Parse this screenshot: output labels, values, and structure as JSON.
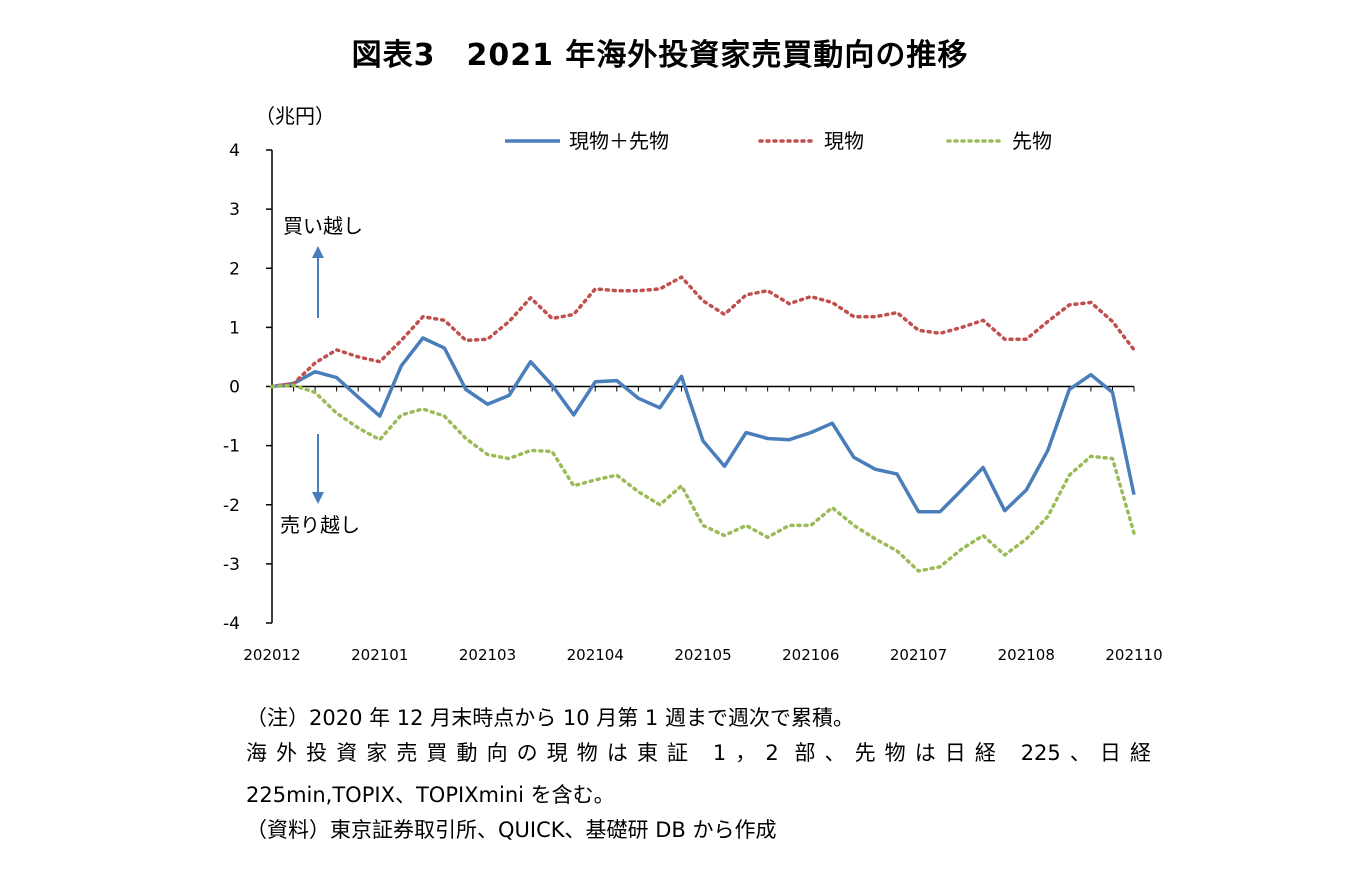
{
  "title": "図表3　2021 年海外投資家売買動向の推移",
  "chart_data": {
    "type": "line",
    "unit_label": "（兆円）",
    "ylim": [
      -4,
      4
    ],
    "y_ticks": [
      "4",
      "3",
      "2",
      "1",
      "0",
      "-1",
      "-2",
      "-3",
      "-4"
    ],
    "x_tick_labels": [
      "202012",
      "202101",
      "202103",
      "202104",
      "202105",
      "202106",
      "202107",
      "202108",
      "202110"
    ],
    "annotations": {
      "buy": "買い越し",
      "sell": "売り越し"
    },
    "grid": false,
    "legend_position": "top",
    "series": [
      {
        "name": "現物＋先物",
        "color": "#4a7ebb",
        "style": "solid",
        "values": [
          0,
          0.05,
          0.25,
          0.15,
          -0.18,
          -0.5,
          0.35,
          0.82,
          0.65,
          -0.05,
          -0.3,
          -0.15,
          0.42,
          0.02,
          -0.48,
          0.08,
          0.1,
          -0.2,
          -0.36,
          0.17,
          -0.92,
          -1.35,
          -0.78,
          -0.88,
          -0.9,
          -0.78,
          -0.62,
          -1.2,
          -1.4,
          -1.48,
          -2.12,
          -2.12,
          -1.75,
          -1.37,
          -2.1,
          -1.75,
          -1.08,
          -0.05,
          0.2,
          -0.1,
          -1.83
        ]
      },
      {
        "name": "現物",
        "color": "#c0504d",
        "style": "dotted",
        "values": [
          0,
          0.05,
          0.4,
          0.62,
          0.5,
          0.42,
          0.78,
          1.18,
          1.12,
          0.78,
          0.8,
          1.1,
          1.5,
          1.15,
          1.22,
          1.65,
          1.62,
          1.62,
          1.65,
          1.85,
          1.45,
          1.22,
          1.55,
          1.62,
          1.4,
          1.52,
          1.42,
          1.18,
          1.18,
          1.25,
          0.95,
          0.9,
          1.0,
          1.12,
          0.8,
          0.8,
          1.1,
          1.38,
          1.42,
          1.1,
          0.62
        ]
      },
      {
        "name": "先物",
        "color": "#9bbb59",
        "style": "dotted",
        "values": [
          0,
          0.02,
          -0.1,
          -0.45,
          -0.7,
          -0.9,
          -0.48,
          -0.38,
          -0.5,
          -0.88,
          -1.15,
          -1.22,
          -1.08,
          -1.1,
          -1.68,
          -1.58,
          -1.5,
          -1.78,
          -2.0,
          -1.68,
          -2.35,
          -2.52,
          -2.35,
          -2.55,
          -2.35,
          -2.35,
          -2.05,
          -2.35,
          -2.58,
          -2.78,
          -3.12,
          -3.05,
          -2.75,
          -2.52,
          -2.85,
          -2.58,
          -2.2,
          -1.5,
          -1.18,
          -1.22,
          -2.48
        ]
      }
    ]
  },
  "notes": {
    "n1": "（注）2020 年 12 月末時点から 10 月第 1 週まで週次で累積。",
    "n2": "海外投資家売買動向の現物は東証 1，2 部、先物は日経 225、日経",
    "n3": "225min,TOPIX、TOPIXmini を含む。",
    "n4": "（資料）東京証券取引所、QUICK、基礎研 DB から作成"
  }
}
